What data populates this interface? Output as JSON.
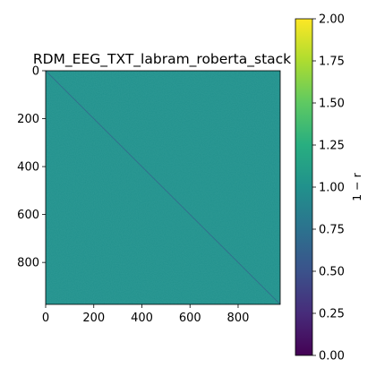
{
  "chart_data": {
    "type": "heatmap",
    "title": "RDM_EEG_TXT_labram_roberta_stack",
    "matrix_size": 975,
    "background_value": 1.0,
    "diagonal_value": 0.0,
    "x_ticks": [
      0,
      200,
      400,
      600,
      800
    ],
    "y_ticks": [
      0,
      200,
      400,
      600,
      800
    ],
    "x_tick_labels": [
      "0",
      "200",
      "400",
      "600",
      "800"
    ],
    "y_tick_labels": [
      "0",
      "200",
      "400",
      "600",
      "800"
    ],
    "colorbar": {
      "label": "1 − r",
      "range": [
        0,
        2.0
      ],
      "ticks": [
        0,
        0.25,
        0.5,
        0.75,
        1.0,
        1.25,
        1.5,
        1.75,
        2.0
      ],
      "tick_labels": [
        "0.00",
        "0.25",
        "0.50",
        "0.75",
        "1.00",
        "1.25",
        "1.50",
        "1.75",
        "2.00"
      ],
      "colormap": "viridis"
    }
  },
  "colors": {
    "heatmap_mid": "#21918c",
    "diagonal": "#3b528b"
  }
}
